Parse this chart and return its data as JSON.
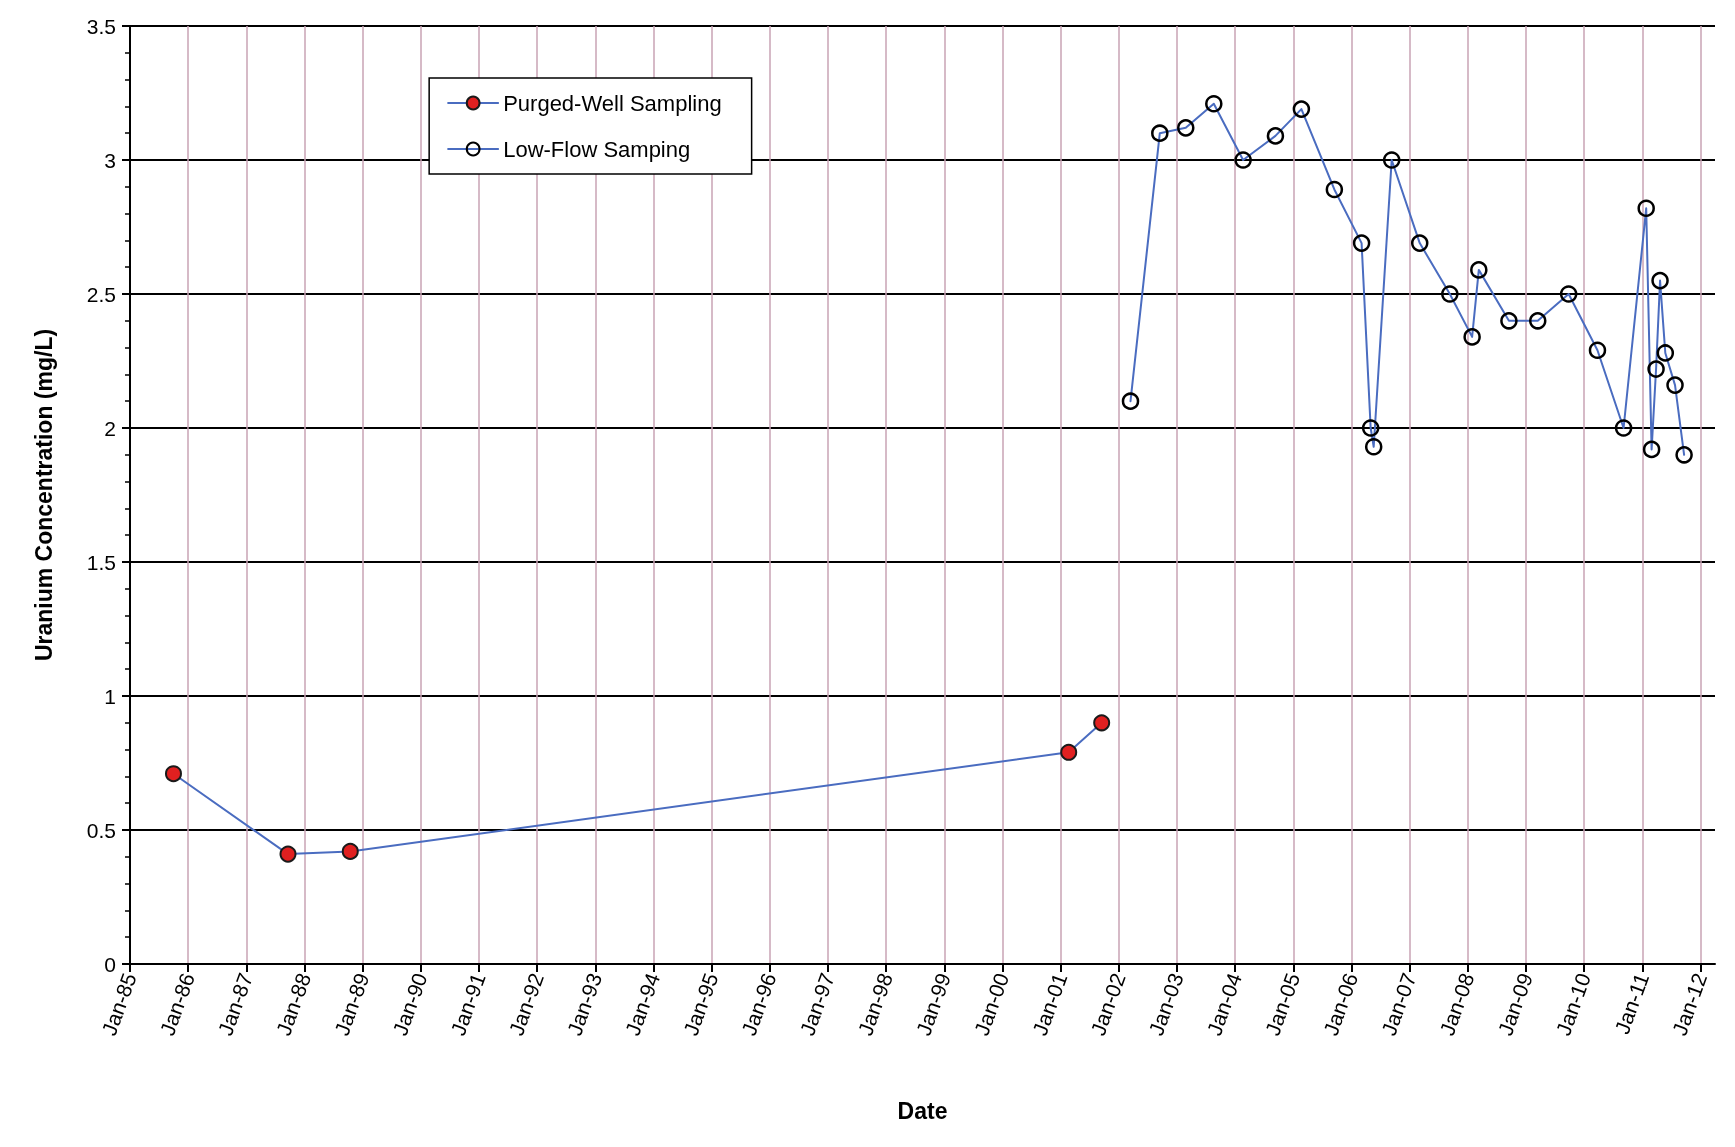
{
  "chart_data": {
    "type": "line",
    "xlabel": "Date",
    "ylabel": "Uranium Concentration (mg/L)",
    "xlim": [
      "1985-01-01",
      "2012-04-01"
    ],
    "ylim": [
      0,
      3.5
    ],
    "yticks": [
      0,
      0.5,
      1,
      1.5,
      2,
      2.5,
      3,
      3.5
    ],
    "xticks": [
      {
        "value": "1985-01-01",
        "label": "Jan-85"
      },
      {
        "value": "1986-01-01",
        "label": "Jan-86"
      },
      {
        "value": "1987-01-01",
        "label": "Jan-87"
      },
      {
        "value": "1988-01-01",
        "label": "Jan-88"
      },
      {
        "value": "1989-01-01",
        "label": "Jan-89"
      },
      {
        "value": "1990-01-01",
        "label": "Jan-90"
      },
      {
        "value": "1991-01-01",
        "label": "Jan-91"
      },
      {
        "value": "1992-01-01",
        "label": "Jan-92"
      },
      {
        "value": "1993-01-01",
        "label": "Jan-93"
      },
      {
        "value": "1994-01-01",
        "label": "Jan-94"
      },
      {
        "value": "1995-01-01",
        "label": "Jan-95"
      },
      {
        "value": "1996-01-01",
        "label": "Jan-96"
      },
      {
        "value": "1997-01-01",
        "label": "Jan-97"
      },
      {
        "value": "1998-01-01",
        "label": "Jan-98"
      },
      {
        "value": "1999-01-01",
        "label": "Jan-99"
      },
      {
        "value": "2000-01-01",
        "label": "Jan-00"
      },
      {
        "value": "2001-01-01",
        "label": "Jan-01"
      },
      {
        "value": "2002-01-01",
        "label": "Jan-02"
      },
      {
        "value": "2003-01-01",
        "label": "Jan-03"
      },
      {
        "value": "2004-01-01",
        "label": "Jan-04"
      },
      {
        "value": "2005-01-01",
        "label": "Jan-05"
      },
      {
        "value": "2006-01-01",
        "label": "Jan-06"
      },
      {
        "value": "2007-01-01",
        "label": "Jan-07"
      },
      {
        "value": "2008-01-01",
        "label": "Jan-08"
      },
      {
        "value": "2009-01-01",
        "label": "Jan-09"
      },
      {
        "value": "2010-01-01",
        "label": "Jan-10"
      },
      {
        "value": "2011-01-01",
        "label": "Jan-11"
      },
      {
        "value": "2012-01-01",
        "label": "Jan-12"
      }
    ],
    "grid": true,
    "legend": "top left",
    "marker": "circle",
    "line_style": "solid",
    "series": [
      {
        "name": "Purged-Well Sampling",
        "color": "#e02020",
        "x": [
          "1985-10-01",
          "1987-09-20",
          "1988-10-15",
          "2001-02-20",
          "2001-09-15"
        ],
        "values": [
          0.71,
          0.41,
          0.42,
          0.79,
          0.9
        ]
      },
      {
        "name": "Low-Flow Samping",
        "color": "#000000",
        "x": [
          "2002-03-15",
          "2002-09-15",
          "2003-02-25",
          "2003-08-20",
          "2004-02-20",
          "2004-09-10",
          "2005-02-20",
          "2005-09-15",
          "2006-03-05",
          "2006-05-01",
          "2006-05-20",
          "2006-09-10",
          "2007-03-05",
          "2007-09-10",
          "2008-01-28",
          "2008-03-10",
          "2008-09-15",
          "2009-03-15",
          "2009-09-25",
          "2010-03-25",
          "2010-09-05",
          "2011-01-25",
          "2011-02-28",
          "2011-03-28",
          "2011-04-22",
          "2011-05-25",
          "2011-07-25",
          "2011-09-20"
        ],
        "values": [
          2.1,
          3.1,
          3.12,
          3.21,
          3.0,
          3.09,
          3.19,
          2.89,
          2.69,
          2.0,
          1.93,
          3.0,
          2.69,
          2.5,
          2.34,
          2.59,
          2.4,
          2.4,
          2.5,
          2.29,
          2.0,
          2.82,
          1.92,
          2.22,
          2.55,
          2.28,
          2.16,
          1.9
        ]
      }
    ]
  }
}
